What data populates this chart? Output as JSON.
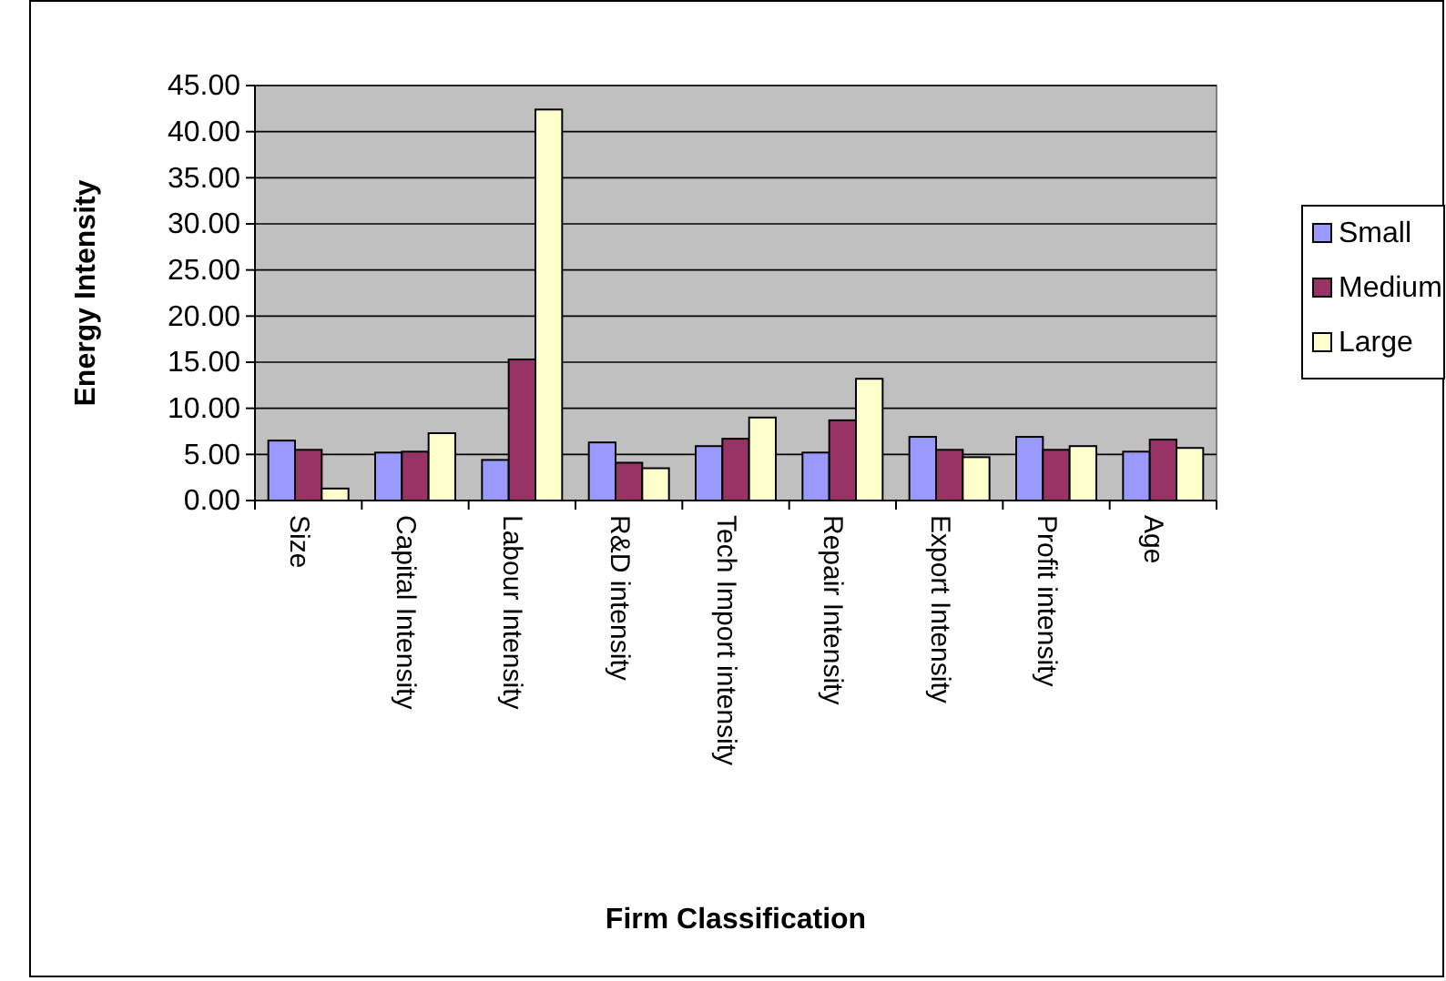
{
  "chart_data": {
    "type": "bar",
    "xlabel": "Firm Classification",
    "ylabel": "Energy Intensity",
    "categories": [
      "Size",
      "Capital Intensity",
      "Labour Intensity",
      "R&D intensity",
      "Tech Import intensity",
      "Repair Intensity",
      "Export Intensity",
      "Profit intensity",
      "Age"
    ],
    "series": [
      {
        "name": "Small",
        "color": "#9999ff",
        "values": [
          6.5,
          5.2,
          4.4,
          6.3,
          5.9,
          5.2,
          6.9,
          6.9,
          5.3
        ]
      },
      {
        "name": "Medium",
        "color": "#993366",
        "values": [
          5.5,
          5.3,
          15.3,
          4.1,
          6.7,
          8.7,
          5.5,
          5.5,
          6.6
        ]
      },
      {
        "name": "Large",
        "color": "#ffffcc",
        "values": [
          1.3,
          7.3,
          42.4,
          3.5,
          9.0,
          13.2,
          4.7,
          5.9,
          5.7
        ]
      }
    ],
    "ylim": [
      0,
      45
    ],
    "yticks": [
      {
        "value": 0,
        "label": "0.00"
      },
      {
        "value": 5,
        "label": "5.00"
      },
      {
        "value": 10,
        "label": "10.00"
      },
      {
        "value": 15,
        "label": "15.00"
      },
      {
        "value": 20,
        "label": "20.00"
      },
      {
        "value": 25,
        "label": "25.00"
      },
      {
        "value": 30,
        "label": "30.00"
      },
      {
        "value": 35,
        "label": "35.00"
      },
      {
        "value": 40,
        "label": "40.00"
      },
      {
        "value": 45,
        "label": "45.00"
      }
    ],
    "grid": "y",
    "legend": "right"
  }
}
